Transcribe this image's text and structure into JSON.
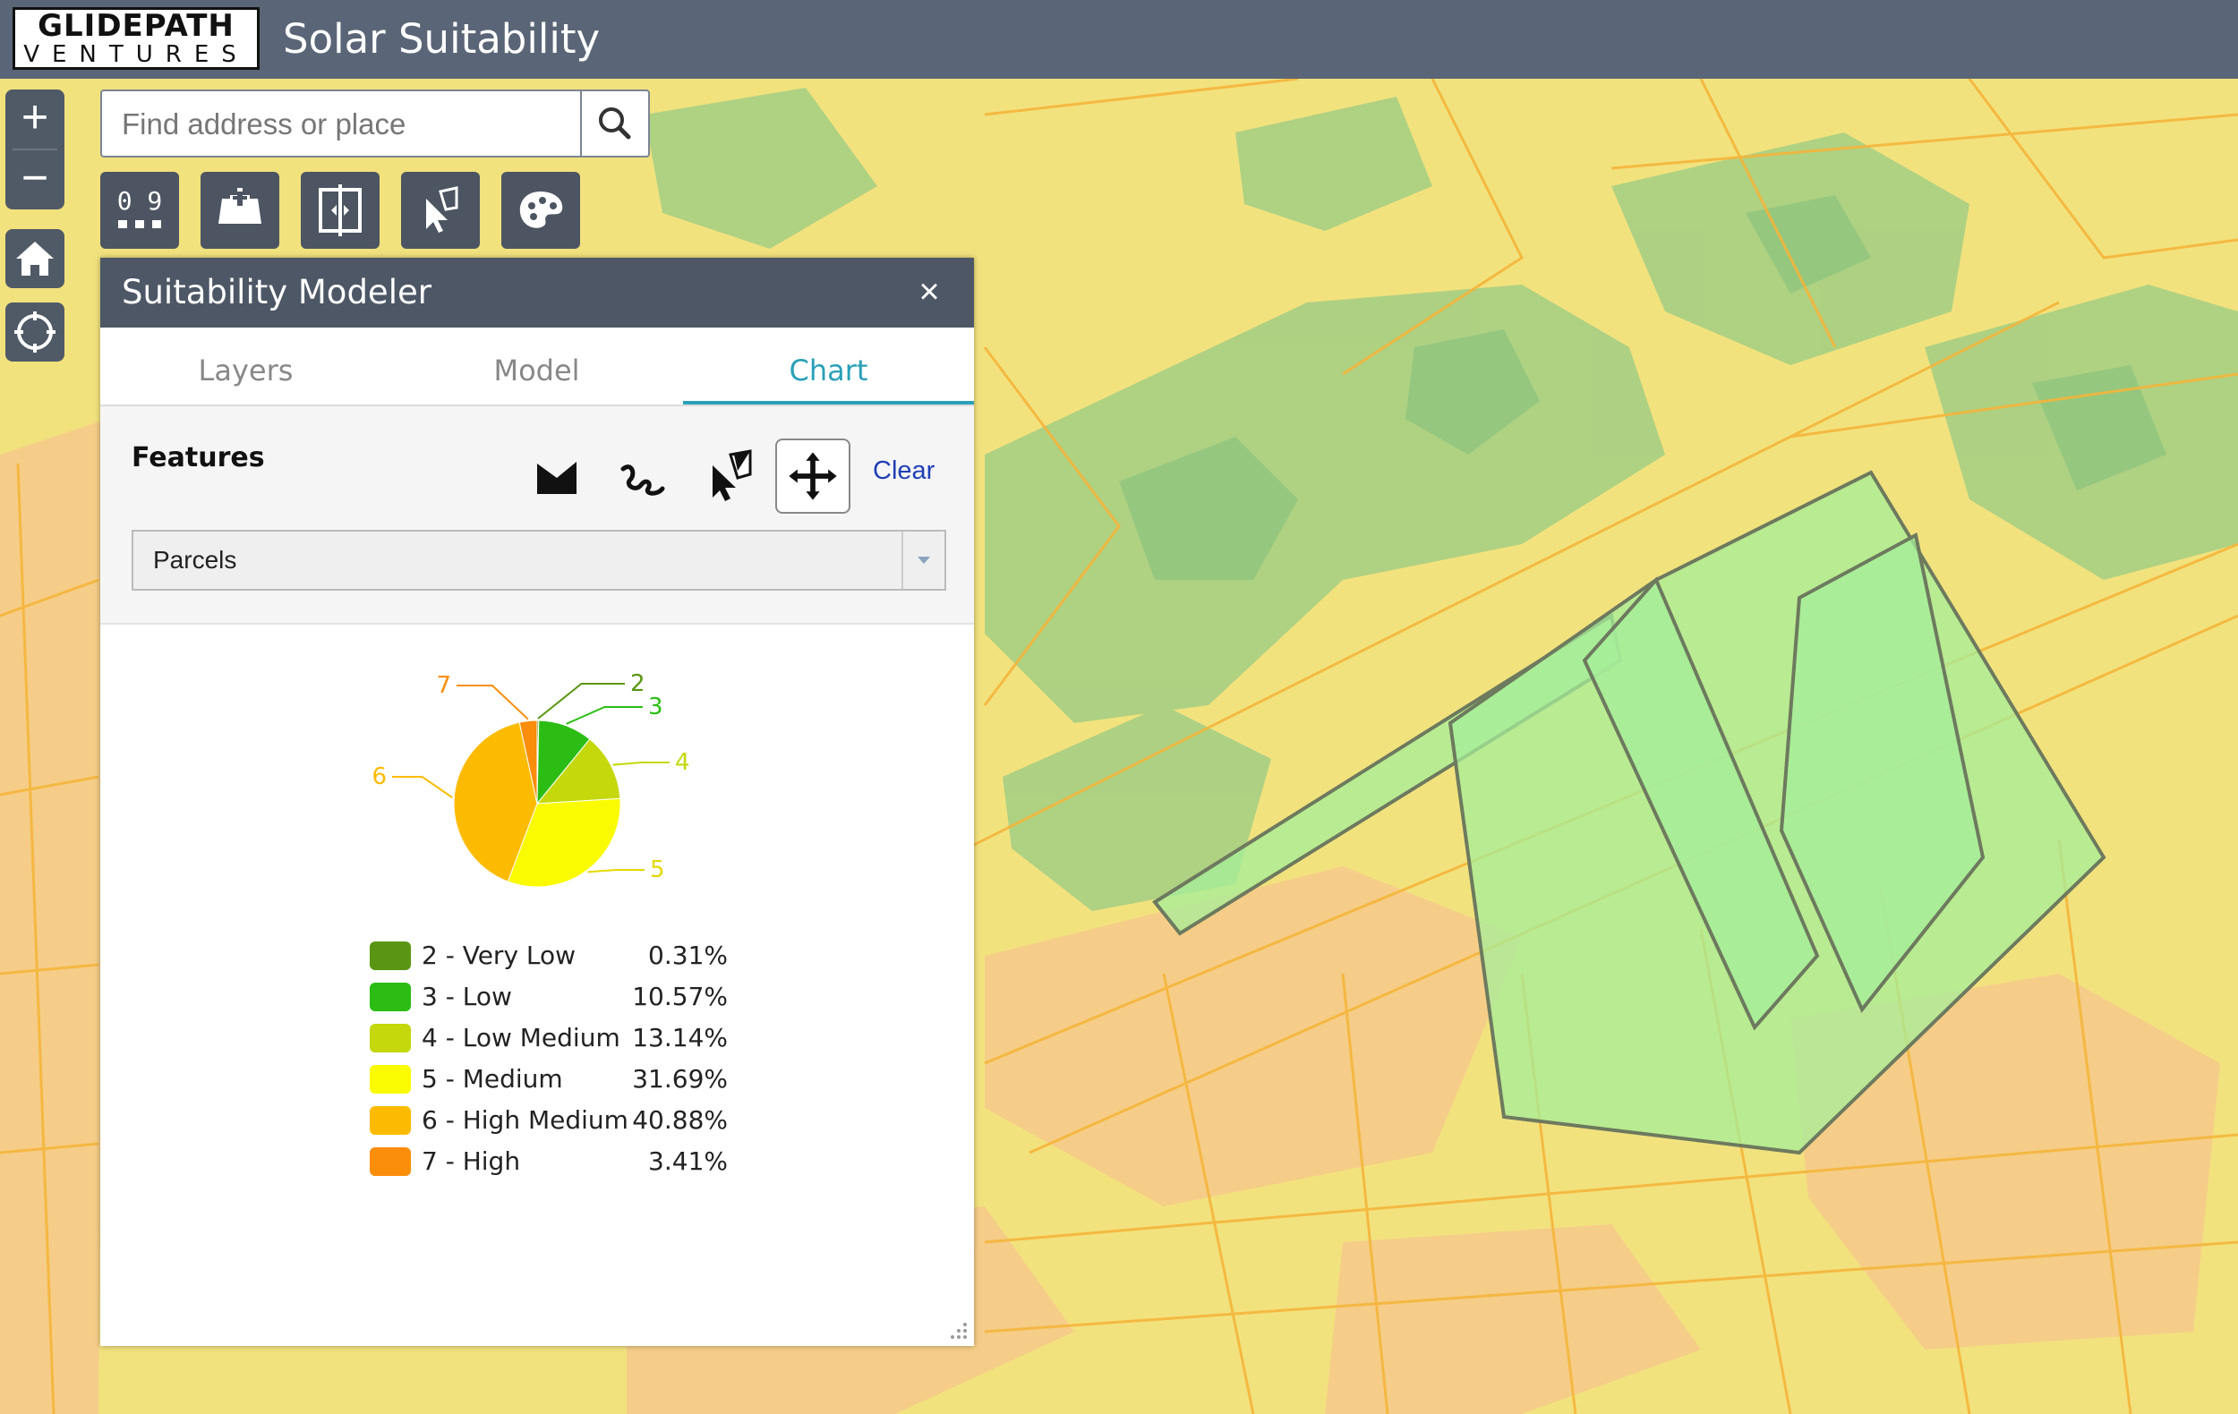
{
  "header": {
    "logo_line1": "GLIDEPATH",
    "logo_line2": "VENTURES",
    "title": "Solar Suitability"
  },
  "map_controls": {
    "zoom_in": "+",
    "zoom_out": "−"
  },
  "search": {
    "placeholder": "Find address or place"
  },
  "toolbar": {
    "coordinates_label": "0 9"
  },
  "panel": {
    "title": "Suitability Modeler",
    "close": "×",
    "tabs": [
      "Layers",
      "Model",
      "Chart"
    ],
    "active_tab": "Chart",
    "features_label": "Features",
    "clear_label": "Clear",
    "layer_select_value": "Parcels"
  },
  "colors": {
    "very_low": "#5a9613",
    "low": "#2bbd14",
    "low_medium": "#c4d80c",
    "medium": "#fbfb00",
    "high_medium": "#fdbb00",
    "high": "#fa8d0a",
    "accent": "#2aa0b8"
  },
  "chart_data": {
    "type": "pie",
    "slice_labels": [
      "2",
      "3",
      "4",
      "5",
      "6",
      "7"
    ],
    "legend": [
      {
        "label": "2 - Very Low",
        "value": 0.31,
        "display": "0.31%",
        "color": "#5a9613"
      },
      {
        "label": "3 - Low",
        "value": 10.57,
        "display": "10.57%",
        "color": "#2bbd14"
      },
      {
        "label": "4 - Low Medium",
        "value": 13.14,
        "display": "13.14%",
        "color": "#c4d80c"
      },
      {
        "label": "5 - Medium",
        "value": 31.69,
        "display": "31.69%",
        "color": "#fbfb00"
      },
      {
        "label": "6 - High Medium",
        "value": 40.88,
        "display": "40.88%",
        "color": "#fdbb00"
      },
      {
        "label": "7 - High",
        "value": 3.41,
        "display": "3.41%",
        "color": "#fa8d0a"
      }
    ]
  }
}
